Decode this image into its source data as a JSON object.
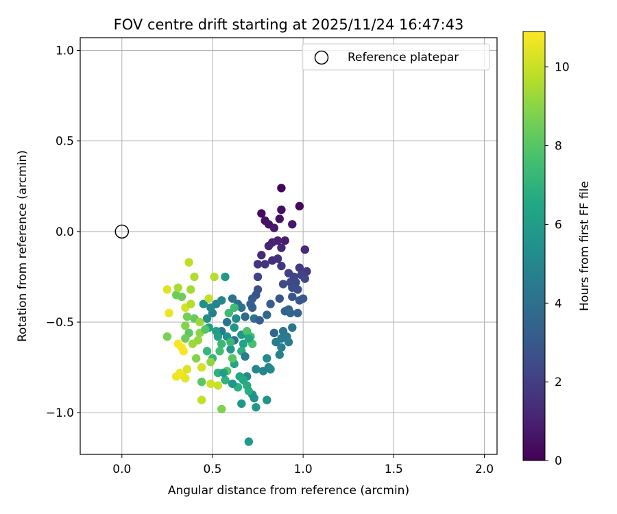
{
  "chart_data": {
    "type": "scatter",
    "title": "FOV centre drift starting at 2025/11/24 16:47:43",
    "xlabel": "Angular distance from reference (arcmin)",
    "ylabel": "Rotation from reference (arcmin)",
    "xlim": [
      -0.23,
      2.07
    ],
    "ylim": [
      -1.23,
      1.07
    ],
    "xticks": [
      {
        "value": 0.0,
        "label": "0.0"
      },
      {
        "value": 0.5,
        "label": "0.5"
      },
      {
        "value": 1.0,
        "label": "1.0"
      },
      {
        "value": 1.5,
        "label": "1.5"
      },
      {
        "value": 2.0,
        "label": "2.0"
      }
    ],
    "yticks": [
      {
        "value": -1.0,
        "label": "−1.0"
      },
      {
        "value": -0.5,
        "label": "−0.5"
      },
      {
        "value": 0.0,
        "label": "0.0"
      },
      {
        "value": 0.5,
        "label": "0.5"
      },
      {
        "value": 1.0,
        "label": "1.0"
      }
    ],
    "grid": true,
    "legend": {
      "position": "top-right",
      "label": "Reference platepar"
    },
    "reference_point": {
      "x": 0.0,
      "y": 0.0
    },
    "colorbar": {
      "label": "Hours from first FF file",
      "range": [
        0,
        10.9
      ],
      "colormap": "viridis",
      "ticks": [
        {
          "value": 0,
          "label": "0"
        },
        {
          "value": 2,
          "label": "2"
        },
        {
          "value": 4,
          "label": "4"
        },
        {
          "value": 6,
          "label": "6"
        },
        {
          "value": 8,
          "label": "8"
        },
        {
          "value": 10,
          "label": "10"
        }
      ]
    },
    "series": [
      {
        "name": "FOV centre",
        "points": [
          [
            0.88,
            0.24,
            0.1
          ],
          [
            0.98,
            0.14,
            0.2
          ],
          [
            0.77,
            0.1,
            0.3
          ],
          [
            0.88,
            0.12,
            0.4
          ],
          [
            0.79,
            0.06,
            0.5
          ],
          [
            0.87,
            0.07,
            0.5
          ],
          [
            0.81,
            0.04,
            0.6
          ],
          [
            0.94,
            0.04,
            0.7
          ],
          [
            0.84,
            0.02,
            0.8
          ],
          [
            0.9,
            -0.05,
            0.9
          ],
          [
            0.86,
            -0.05,
            1.0
          ],
          [
            0.83,
            -0.06,
            1.0
          ],
          [
            0.81,
            -0.08,
            1.1
          ],
          [
            0.88,
            -0.09,
            1.2
          ],
          [
            1.01,
            -0.1,
            1.3
          ],
          [
            0.77,
            -0.13,
            1.3
          ],
          [
            0.83,
            -0.16,
            1.4
          ],
          [
            0.86,
            -0.15,
            1.5
          ],
          [
            0.75,
            -0.18,
            1.6
          ],
          [
            0.79,
            -0.18,
            1.6
          ],
          [
            0.88,
            -0.19,
            1.7
          ],
          [
            0.98,
            -0.2,
            1.8
          ],
          [
            1.02,
            -0.22,
            1.9
          ],
          [
            0.92,
            -0.23,
            2.0
          ],
          [
            0.75,
            -0.25,
            2.1
          ],
          [
            0.99,
            -0.24,
            2.1
          ],
          [
            0.95,
            -0.25,
            2.2
          ],
          [
            0.93,
            -0.28,
            2.3
          ],
          [
            1.01,
            -0.26,
            2.3
          ],
          [
            0.96,
            -0.28,
            2.4
          ],
          [
            0.89,
            -0.29,
            2.5
          ],
          [
            0.97,
            -0.32,
            2.5
          ],
          [
            0.94,
            -0.31,
            2.6
          ],
          [
            0.75,
            -0.32,
            2.7
          ],
          [
            0.74,
            -0.35,
            2.8
          ],
          [
            0.87,
            -0.37,
            2.8
          ],
          [
            0.94,
            -0.36,
            2.9
          ],
          [
            1.0,
            -0.37,
            3.0
          ],
          [
            0.98,
            -0.38,
            3.0
          ],
          [
            0.72,
            -0.37,
            3.1
          ],
          [
            0.82,
            -0.4,
            3.2
          ],
          [
            0.71,
            -0.4,
            3.3
          ],
          [
            0.72,
            -0.42,
            3.3
          ],
          [
            0.9,
            -0.44,
            3.4
          ],
          [
            0.92,
            -0.43,
            3.5
          ],
          [
            0.97,
            -0.45,
            3.5
          ],
          [
            0.93,
            -0.45,
            3.6
          ],
          [
            0.8,
            -0.46,
            3.7
          ],
          [
            0.68,
            -0.47,
            3.8
          ],
          [
            0.64,
            -0.4,
            3.9
          ],
          [
            0.66,
            -0.42,
            4.0
          ],
          [
            0.61,
            -0.37,
            4.1
          ],
          [
            0.73,
            -0.48,
            4.2
          ],
          [
            0.94,
            -0.53,
            4.2
          ],
          [
            0.89,
            -0.55,
            4.3
          ],
          [
            0.91,
            -0.58,
            4.4
          ],
          [
            0.88,
            -0.59,
            4.5
          ],
          [
            0.85,
            -0.61,
            4.5
          ],
          [
            0.92,
            -0.61,
            4.6
          ],
          [
            0.88,
            -0.64,
            4.7
          ],
          [
            0.87,
            -0.68,
            4.8
          ],
          [
            0.81,
            -0.75,
            4.9
          ],
          [
            0.78,
            -0.77,
            5.0
          ],
          [
            0.74,
            -0.76,
            5.0
          ],
          [
            0.82,
            -0.76,
            5.1
          ],
          [
            0.8,
            -0.7,
            5.2
          ],
          [
            0.69,
            -0.8,
            5.3
          ],
          [
            0.72,
            -0.9,
            5.4
          ],
          [
            0.73,
            -0.92,
            5.5
          ],
          [
            0.8,
            -0.93,
            5.6
          ],
          [
            0.66,
            -0.95,
            5.7
          ],
          [
            0.74,
            -0.97,
            5.8
          ],
          [
            0.7,
            -1.16,
            5.9
          ],
          [
            0.62,
            -0.6,
            4.0
          ],
          [
            0.58,
            -0.5,
            4.2
          ],
          [
            0.55,
            -0.55,
            4.4
          ],
          [
            0.5,
            -0.45,
            4.6
          ],
          [
            0.52,
            -0.4,
            4.8
          ],
          [
            0.55,
            -0.38,
            5.0
          ],
          [
            0.49,
            -0.42,
            5.1
          ],
          [
            0.47,
            -0.48,
            5.3
          ],
          [
            0.45,
            -0.4,
            5.4
          ],
          [
            0.58,
            -0.58,
            5.5
          ],
          [
            0.62,
            -0.53,
            5.6
          ],
          [
            0.66,
            -0.57,
            5.7
          ],
          [
            0.6,
            -0.65,
            5.8
          ],
          [
            0.57,
            -0.25,
            5.9
          ],
          [
            0.52,
            -0.55,
            6.0
          ],
          [
            0.48,
            -0.53,
            6.1
          ],
          [
            0.53,
            -0.58,
            6.2
          ],
          [
            0.67,
            -0.62,
            6.3
          ],
          [
            0.62,
            -0.73,
            6.4
          ],
          [
            0.65,
            -0.8,
            6.5
          ],
          [
            0.67,
            -0.82,
            6.6
          ],
          [
            0.69,
            -0.85,
            6.7
          ],
          [
            0.7,
            -0.88,
            6.8
          ],
          [
            0.64,
            -0.86,
            6.9
          ],
          [
            0.57,
            -0.82,
            7.0
          ],
          [
            0.53,
            -0.78,
            7.0
          ],
          [
            0.5,
            -0.7,
            7.1
          ],
          [
            0.47,
            -0.66,
            7.2
          ],
          [
            0.55,
            -0.62,
            7.3
          ],
          [
            0.59,
            -0.45,
            7.4
          ],
          [
            0.62,
            -0.42,
            7.5
          ],
          [
            0.71,
            -0.58,
            7.6
          ],
          [
            0.72,
            -0.62,
            7.7
          ],
          [
            0.69,
            -0.55,
            7.8
          ],
          [
            0.58,
            -0.77,
            7.9
          ],
          [
            0.61,
            -0.7,
            8.0
          ],
          [
            0.44,
            -0.83,
            8.1
          ],
          [
            0.37,
            -0.56,
            8.2
          ],
          [
            0.4,
            -0.48,
            8.3
          ],
          [
            0.3,
            -0.35,
            8.4
          ],
          [
            0.33,
            -0.36,
            8.5
          ],
          [
            0.36,
            -0.47,
            8.6
          ],
          [
            0.25,
            -0.58,
            8.7
          ],
          [
            0.55,
            -0.98,
            8.8
          ],
          [
            0.35,
            -0.52,
            8.9
          ],
          [
            0.43,
            -0.56,
            9.0
          ],
          [
            0.49,
            -0.72,
            9.1
          ],
          [
            0.42,
            -0.6,
            9.2
          ],
          [
            0.39,
            -0.62,
            9.3
          ],
          [
            0.38,
            -0.32,
            9.4
          ],
          [
            0.31,
            -0.31,
            9.5
          ],
          [
            0.4,
            -0.25,
            9.6
          ],
          [
            0.51,
            -0.25,
            9.7
          ],
          [
            0.37,
            -0.17,
            9.8
          ],
          [
            0.44,
            -0.93,
            9.9
          ],
          [
            0.53,
            -0.85,
            10.0
          ],
          [
            0.49,
            -0.84,
            10.1
          ],
          [
            0.35,
            -0.42,
            10.2
          ],
          [
            0.36,
            -0.76,
            10.3
          ],
          [
            0.33,
            -0.79,
            10.4
          ],
          [
            0.35,
            -0.81,
            10.5
          ],
          [
            0.3,
            -0.8,
            10.6
          ],
          [
            0.32,
            -0.78,
            10.7
          ],
          [
            0.31,
            -0.62,
            10.8
          ],
          [
            0.33,
            -0.64,
            10.9
          ],
          [
            0.34,
            -0.66,
            10.8
          ],
          [
            0.26,
            -0.45,
            10.6
          ],
          [
            0.25,
            -0.32,
            10.4
          ],
          [
            0.44,
            -0.75,
            10.2
          ],
          [
            0.48,
            -0.37,
            9.9
          ],
          [
            0.38,
            -0.4,
            9.7
          ],
          [
            0.43,
            -0.5,
            9.3
          ],
          [
            0.41,
            -0.7,
            8.9
          ],
          [
            0.35,
            -0.59,
            8.5
          ],
          [
            0.46,
            -0.54,
            8.0
          ],
          [
            0.54,
            -0.66,
            7.6
          ],
          [
            0.6,
            -0.61,
            7.2
          ],
          [
            0.66,
            -0.66,
            6.8
          ],
          [
            0.7,
            -0.59,
            6.4
          ],
          [
            0.56,
            -0.78,
            6.0
          ],
          [
            0.61,
            -0.84,
            5.7
          ],
          [
            0.76,
            -0.49,
            3.2
          ],
          [
            0.84,
            -0.56,
            3.6
          ],
          [
            0.68,
            -0.69,
            4.5
          ],
          [
            0.63,
            -0.48,
            5.2
          ]
        ]
      }
    ]
  }
}
